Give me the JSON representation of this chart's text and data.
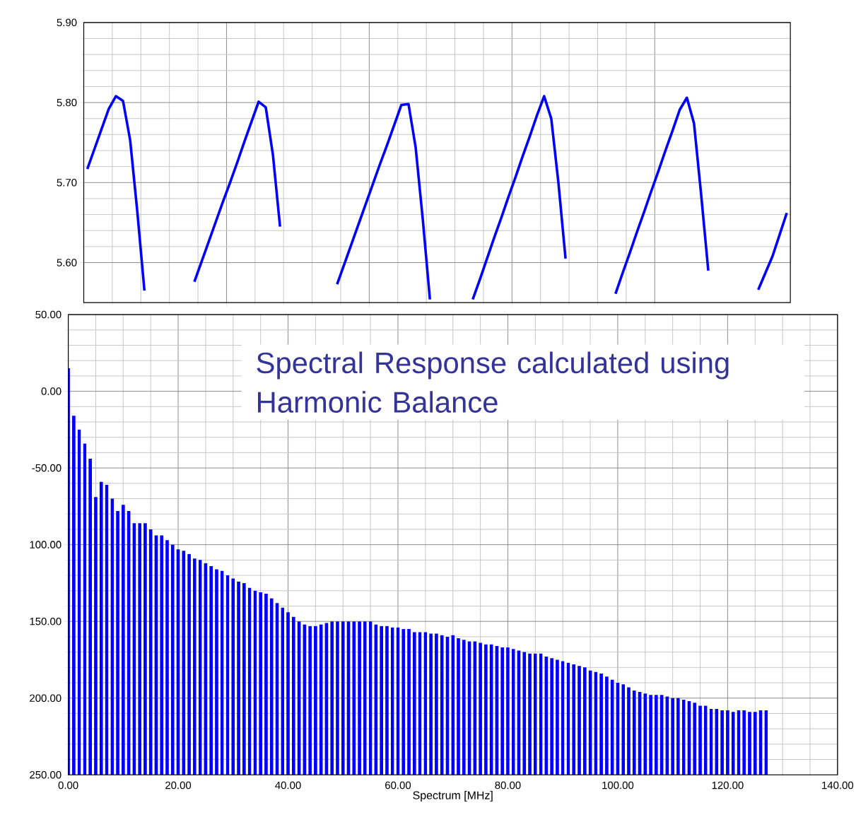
{
  "chart_data": [
    {
      "type": "line",
      "color": "#0000ff",
      "categories": [
        null,
        null,
        null,
        null,
        null,
        null,
        null,
        null,
        null,
        null,
        null,
        null,
        null,
        null,
        null,
        null,
        null,
        null,
        null,
        null,
        null,
        null,
        null,
        null,
        null,
        null,
        null,
        null,
        null,
        null,
        null,
        null,
        null,
        null,
        null,
        null,
        null,
        null,
        null,
        null,
        null,
        null,
        null,
        null,
        null,
        null,
        null,
        null,
        null,
        null,
        null,
        null,
        null,
        null,
        null,
        null,
        null,
        null,
        null,
        null,
        null,
        null,
        null,
        null,
        null,
        null,
        null,
        null,
        null,
        null,
        null,
        null,
        null,
        null,
        null,
        null,
        null,
        null,
        null,
        null,
        null,
        null,
        null,
        null,
        null,
        null,
        null,
        null,
        null,
        null,
        null,
        null,
        null,
        null,
        null,
        null,
        null,
        null,
        null
      ],
      "values": [
        5.717,
        5.742,
        5.767,
        5.792,
        5.808,
        5.802,
        5.753,
        5.664,
        5.565,
        null,
        null,
        null,
        null,
        null,
        null,
        5.576,
        5.601,
        5.626,
        5.651,
        5.676,
        5.7,
        5.725,
        5.751,
        5.776,
        5.801,
        5.794,
        5.735,
        5.645,
        null,
        null,
        null,
        null,
        null,
        null,
        null,
        5.573,
        5.598,
        5.623,
        5.648,
        5.673,
        5.698,
        5.723,
        5.747,
        5.772,
        5.797,
        5.798,
        5.744,
        5.654,
        5.554,
        null,
        null,
        null,
        null,
        null,
        5.554,
        5.579,
        5.605,
        5.631,
        5.656,
        5.682,
        5.707,
        5.733,
        5.758,
        5.784,
        5.808,
        5.78,
        5.7,
        5.605,
        null,
        null,
        null,
        null,
        null,
        null,
        5.561,
        5.587,
        5.612,
        5.638,
        5.663,
        5.689,
        5.714,
        5.74,
        5.765,
        5.791,
        5.806,
        5.774,
        5.685,
        5.59,
        null,
        null,
        null,
        null,
        null,
        null,
        5.566,
        5.587,
        5.608,
        5.635,
        5.662
      ],
      "ylim": [
        5.55,
        5.9
      ],
      "yticks": [
        {
          "value": 5.6,
          "label": "5.60"
        },
        {
          "value": 5.7,
          "label": "5.70"
        },
        {
          "value": 5.8,
          "label": "5.80"
        },
        {
          "value": 5.9,
          "label": "5.90"
        }
      ],
      "grid": true,
      "tick_labels": "y"
    },
    {
      "type": "bar",
      "color": "#0000ff",
      "xlabel": "Spectrum [MHz]",
      "x": [
        0,
        1,
        2,
        3,
        4,
        5,
        6,
        7,
        8,
        9,
        10,
        11,
        12,
        13,
        14,
        15,
        16,
        17,
        18,
        19,
        20,
        21,
        22,
        23,
        24,
        25,
        26,
        27,
        28,
        29,
        30,
        31,
        32,
        33,
        34,
        35,
        36,
        37,
        38,
        39,
        40,
        41,
        42,
        43,
        44,
        45,
        46,
        47,
        48,
        49,
        50,
        51,
        52,
        53,
        54,
        55,
        56,
        57,
        58,
        59,
        60,
        61,
        62,
        63,
        64,
        65,
        66,
        67,
        68,
        69,
        70,
        71,
        72,
        73,
        74,
        75,
        76,
        77,
        78,
        79,
        80,
        81,
        82,
        83,
        84,
        85,
        86,
        87,
        88,
        89,
        90,
        91,
        92,
        93,
        94,
        95,
        96,
        97,
        98,
        99,
        100,
        101,
        102,
        103,
        104,
        105,
        106,
        107,
        108,
        109,
        110,
        111,
        112,
        113,
        114,
        115,
        116,
        117,
        118,
        119,
        120,
        121,
        122,
        123,
        124,
        125,
        126,
        127
      ],
      "base": [
        -250,
        -250,
        -250,
        -250,
        -250,
        -250,
        -250,
        -250,
        -250,
        -250,
        -250,
        -250,
        -250,
        -250,
        -250,
        -250,
        -250,
        -250,
        -250,
        -250,
        -250,
        -250,
        -250,
        -250,
        -250,
        -250,
        -250,
        -250,
        -250,
        -250,
        -250,
        -250,
        -250,
        -250,
        -250,
        -250,
        -250,
        -250,
        -250,
        -250,
        -250,
        -250,
        -250,
        -250,
        -250,
        -250,
        -250,
        -250,
        -250,
        -250,
        -250,
        -250,
        -250,
        -250,
        -250,
        -250,
        -250,
        -250,
        -250,
        -250,
        -250,
        -250,
        -250,
        -250,
        -250,
        -250,
        -250,
        -250,
        -250,
        -250,
        -250,
        -250,
        -250,
        -250,
        -250,
        -250,
        -250,
        -250,
        -250,
        -250,
        -250,
        -250,
        -250,
        -250,
        -250,
        -250,
        -250,
        -250,
        -250,
        -250,
        -250,
        -250,
        -250,
        -250,
        -250,
        -250,
        -250,
        -250,
        -250,
        -250,
        -250,
        -250,
        -250,
        -250,
        -250,
        -250,
        -250,
        -250,
        -250,
        -250,
        -250,
        -250,
        -250,
        -250,
        -250,
        -250,
        -250,
        -250,
        -250,
        -250,
        -250,
        -250,
        -250,
        -250,
        -250,
        -250,
        -250,
        -250
      ],
      "values": [
        265,
        234,
        225,
        216,
        206,
        181,
        191,
        189,
        180,
        172,
        176,
        172,
        164,
        164,
        164,
        160,
        156,
        156,
        153,
        150,
        147,
        146,
        144,
        141,
        140,
        138,
        136,
        134,
        133,
        130,
        128,
        126,
        125,
        122,
        120,
        119,
        118,
        115,
        112,
        109,
        106,
        103,
        100,
        98,
        97,
        97,
        98,
        99,
        100,
        100,
        100,
        100,
        100,
        100,
        100,
        100,
        98,
        97,
        97,
        96,
        96,
        95,
        95,
        93,
        93,
        93,
        92,
        92,
        91,
        90,
        91,
        89,
        88,
        87,
        87,
        86,
        85,
        85,
        84,
        83,
        83,
        82,
        81,
        80,
        79,
        79,
        79,
        77,
        76,
        75,
        74,
        73,
        72,
        71,
        70,
        68,
        67,
        66,
        64,
        62,
        60,
        59,
        57,
        55,
        54,
        53,
        52,
        52,
        52,
        51,
        50,
        50,
        49,
        48,
        47,
        45,
        45,
        43,
        43,
        42,
        42,
        41,
        42,
        42,
        41,
        41,
        42,
        42
      ],
      "xlim": [
        0,
        140
      ],
      "xticks": [
        {
          "value": 0,
          "label": "0.00"
        },
        {
          "value": 20,
          "label": "20.00"
        },
        {
          "value": 40,
          "label": "40.00"
        },
        {
          "value": 60,
          "label": "60.00"
        },
        {
          "value": 80,
          "label": "80.00"
        },
        {
          "value": 100,
          "label": "100.00"
        },
        {
          "value": 120,
          "label": "120.00"
        },
        {
          "value": 140,
          "label": "140.00"
        }
      ],
      "ylim": [
        -250,
        50
      ],
      "yticks": [
        {
          "value": -250,
          "label": "250.00"
        },
        {
          "value": -200,
          "label": "200.00"
        },
        {
          "value": -150,
          "label": "150.00"
        },
        {
          "value": -100,
          "label": "100.00"
        },
        {
          "value": -50,
          "label": "-50.00"
        },
        {
          "value": 0,
          "label": "0.00"
        },
        {
          "value": 50,
          "label": "50.00"
        }
      ],
      "grid": true,
      "annotations": [
        "Spectral Response calculated using Harmonic Balance"
      ]
    }
  ]
}
